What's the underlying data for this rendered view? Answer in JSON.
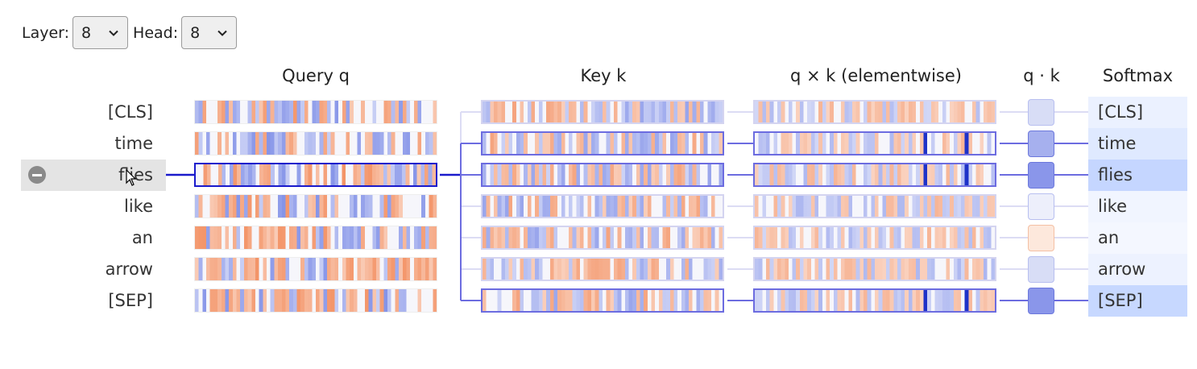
{
  "controls": {
    "layer_label": "Layer:",
    "layer_value": "8",
    "head_label": "Head:",
    "head_value": "8"
  },
  "columns": {
    "query": "Query q",
    "key": "Key k",
    "product": "q × k (elementwise)",
    "dot": "q · k",
    "softmax": "Softmax"
  },
  "tokens": [
    "[CLS]",
    "time",
    "flies",
    "like",
    "an",
    "arrow",
    "[SEP]"
  ],
  "selected_token_index": 2,
  "softmax_weights": [
    0.08,
    0.18,
    0.4,
    0.03,
    0.01,
    0.07,
    0.38
  ],
  "dot_colors": [
    "#d8ddf6",
    "#a6b0ee",
    "#8a96ea",
    "#edeffb",
    "#fde8dc",
    "#d8ddf6",
    "#8a96ea"
  ],
  "colors": {
    "accent": "#1a1acc",
    "link": "#6c6ce0",
    "positive": "#5b6ee0",
    "negative": "#f07840"
  },
  "icons": {
    "remove": "minus-circle-icon",
    "cursor": "mouse-cursor-icon",
    "dropdown": "chevron-down-icon"
  }
}
